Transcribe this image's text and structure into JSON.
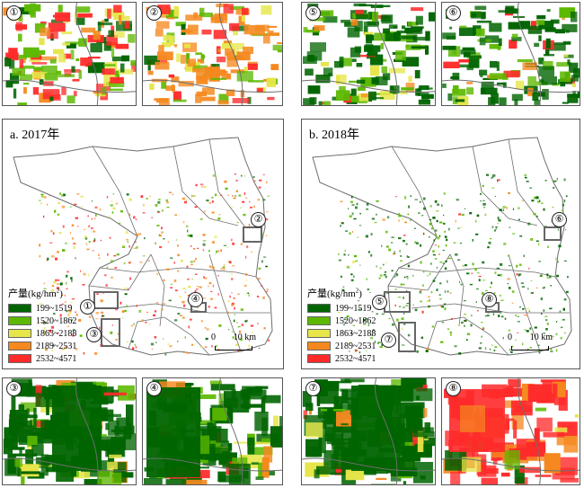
{
  "colors": {
    "c1": "#006400",
    "c2": "#5cb800",
    "c3": "#e6e64a",
    "c4": "#f5891f",
    "c5": "#ff2a2a",
    "boundary": "#6e6e6e"
  },
  "insets": {
    "i1": {
      "label": "①"
    },
    "i2": {
      "label": "②"
    },
    "i3": {
      "label": "③"
    },
    "i4": {
      "label": "④"
    },
    "i5": {
      "label": "⑤"
    },
    "i6": {
      "label": "⑥"
    },
    "i7": {
      "label": "⑦"
    },
    "i8": {
      "label": "⑧"
    }
  },
  "map_a": {
    "title": "a. 2017年",
    "callouts": [
      "①",
      "②",
      "③",
      "④"
    ]
  },
  "map_b": {
    "title": "b. 2018年",
    "callouts": [
      "⑤",
      "⑥",
      "⑦",
      "⑧"
    ]
  },
  "legend": {
    "title_main": "产量(kg/hm",
    "title_sup": "2",
    "title_end": ")",
    "classes": [
      "199~1519",
      "1520~1862",
      "1863~2188",
      "2189~2531",
      "2532~4571"
    ]
  },
  "scale": {
    "zero": "0",
    "label": "10 km"
  }
}
